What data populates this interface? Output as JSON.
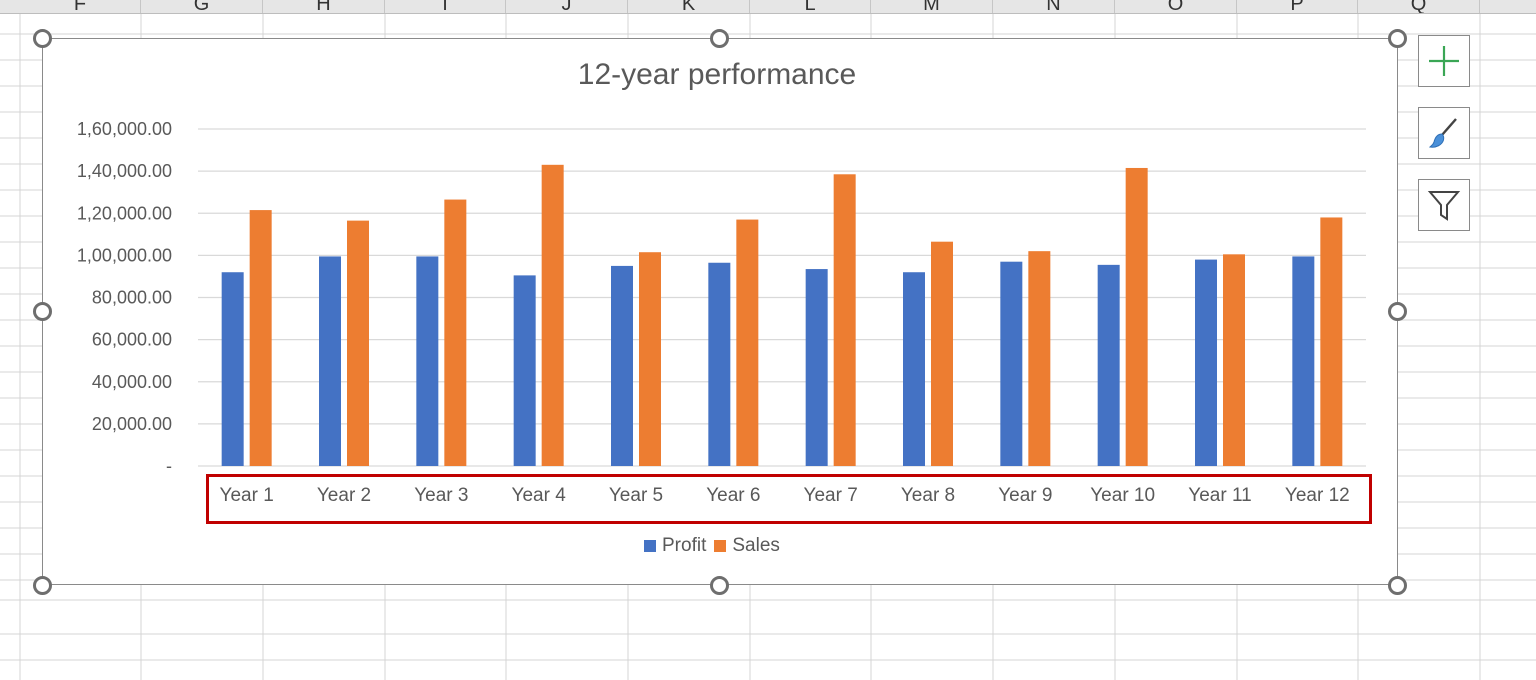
{
  "sheet": {
    "columns": [
      "F",
      "G",
      "H",
      "I",
      "J",
      "K",
      "L",
      "M",
      "N",
      "O",
      "P",
      "Q"
    ]
  },
  "chart": {
    "title": "12-year performance",
    "legend": {
      "profit_label": "Profit",
      "sales_label": "Sales"
    }
  },
  "chart_data": {
    "type": "bar",
    "title": "12-year performance",
    "xlabel": "",
    "ylabel": "",
    "categories": [
      "Year 1",
      "Year 2",
      "Year 3",
      "Year 4",
      "Year 5",
      "Year 6",
      "Year 7",
      "Year 8",
      "Year 9",
      "Year 10",
      "Year 11",
      "Year 12"
    ],
    "series": [
      {
        "name": "Profit",
        "color": "#4472c4",
        "values": [
          92000,
          99500,
          99500,
          90500,
          95000,
          96500,
          93500,
          92000,
          97000,
          95500,
          98000,
          99500
        ]
      },
      {
        "name": "Sales",
        "color": "#ed7d31",
        "values": [
          121500,
          116500,
          126500,
          143000,
          101500,
          117000,
          138500,
          106500,
          102000,
          141500,
          100500,
          118000
        ]
      }
    ],
    "ylim": [
      0,
      160000
    ],
    "yticks": [
      "-",
      "20,000.00",
      "40,000.00",
      "60,000.00",
      "80,000.00",
      "1,00,000.00",
      "1,20,000.00",
      "1,40,000.00",
      "1,60,000.00"
    ],
    "grid": true,
    "legend": "bottom"
  },
  "side_buttons": {
    "elements": "plus-icon",
    "styles": "paintbrush-icon",
    "filters": "funnel-icon"
  }
}
